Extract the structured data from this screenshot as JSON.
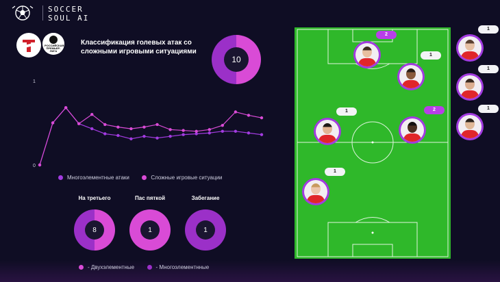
{
  "brand": {
    "line1": "SOCCER",
    "line2": "SOUL AI"
  },
  "clubs": {
    "league_badge_text": "РОССИЙСКАЯ ПРЕМЬЕР-ЛИГА"
  },
  "classification": {
    "title": "Классификация голевых атак со сложными игровыми ситуациями",
    "total": "10"
  },
  "colors": {
    "magenta": "#d94bd6",
    "purple": "#9b30c8",
    "pitch": "#2fb82a"
  },
  "chart_data": {
    "type": "line",
    "y_ticks": [
      "1",
      "0"
    ],
    "ylim": [
      0,
      1
    ],
    "x": [
      1,
      2,
      3,
      4,
      5,
      6,
      7,
      8,
      9,
      10,
      11,
      12,
      13,
      14,
      15,
      16,
      17,
      18
    ],
    "series": [
      {
        "name": "Многоэлементные атаки",
        "color": "#a23be0",
        "values": [
          0,
          0.5,
          0.68,
          0.49,
          0.43,
          0.37,
          0.35,
          0.31,
          0.34,
          0.32,
          0.34,
          0.36,
          0.37,
          0.38,
          0.4,
          0.4,
          0.38,
          0.36
        ]
      },
      {
        "name": "Сложные игровые ситуации",
        "color": "#d94bd6",
        "values": [
          0,
          0.5,
          0.68,
          0.49,
          0.6,
          0.48,
          0.45,
          0.43,
          0.45,
          0.48,
          0.42,
          0.41,
          0.4,
          0.42,
          0.47,
          0.63,
          0.59,
          0.56
        ]
      }
    ]
  },
  "legend_line": {
    "multi": "Многоэлементные атаки",
    "complex": "Сложные игровые ситуации"
  },
  "stats": [
    {
      "label": "На третьего",
      "value": "8",
      "fraction_two_element": 0.5
    },
    {
      "label": "Пас пяткой",
      "value": "1",
      "fraction_two_element": 1.0
    },
    {
      "label": "Забегание",
      "value": "1",
      "fraction_two_element": 0.0
    }
  ],
  "legend_bottom": {
    "two": "- Двухэлементные",
    "multi": "- Многоэлементнные"
  },
  "players": [
    {
      "count": "2",
      "badge": "purple",
      "hair": "#3b2a1e",
      "skin": "#e8bfa0"
    },
    {
      "count": "1",
      "badge": "light",
      "hair": "#2a1e18",
      "skin": "#8a5a3c"
    },
    {
      "count": "1",
      "badge": "light",
      "hair": "#1e1a18",
      "skin": "#e2b494"
    },
    {
      "count": "2",
      "badge": "purple",
      "hair": "#141010",
      "skin": "#4a2f22"
    },
    {
      "count": "1",
      "badge": "light",
      "hair": "#c89a5e",
      "skin": "#ecc6ac"
    },
    {
      "count": "1",
      "badge": "light",
      "hair": "#5a4030",
      "skin": "#e6c0a4"
    },
    {
      "count": "1",
      "badge": "light",
      "hair": "#3a2a20",
      "skin": "#dcae90"
    },
    {
      "count": "1",
      "badge": "light",
      "hair": "#2c241e",
      "skin": "#e0b898"
    }
  ]
}
